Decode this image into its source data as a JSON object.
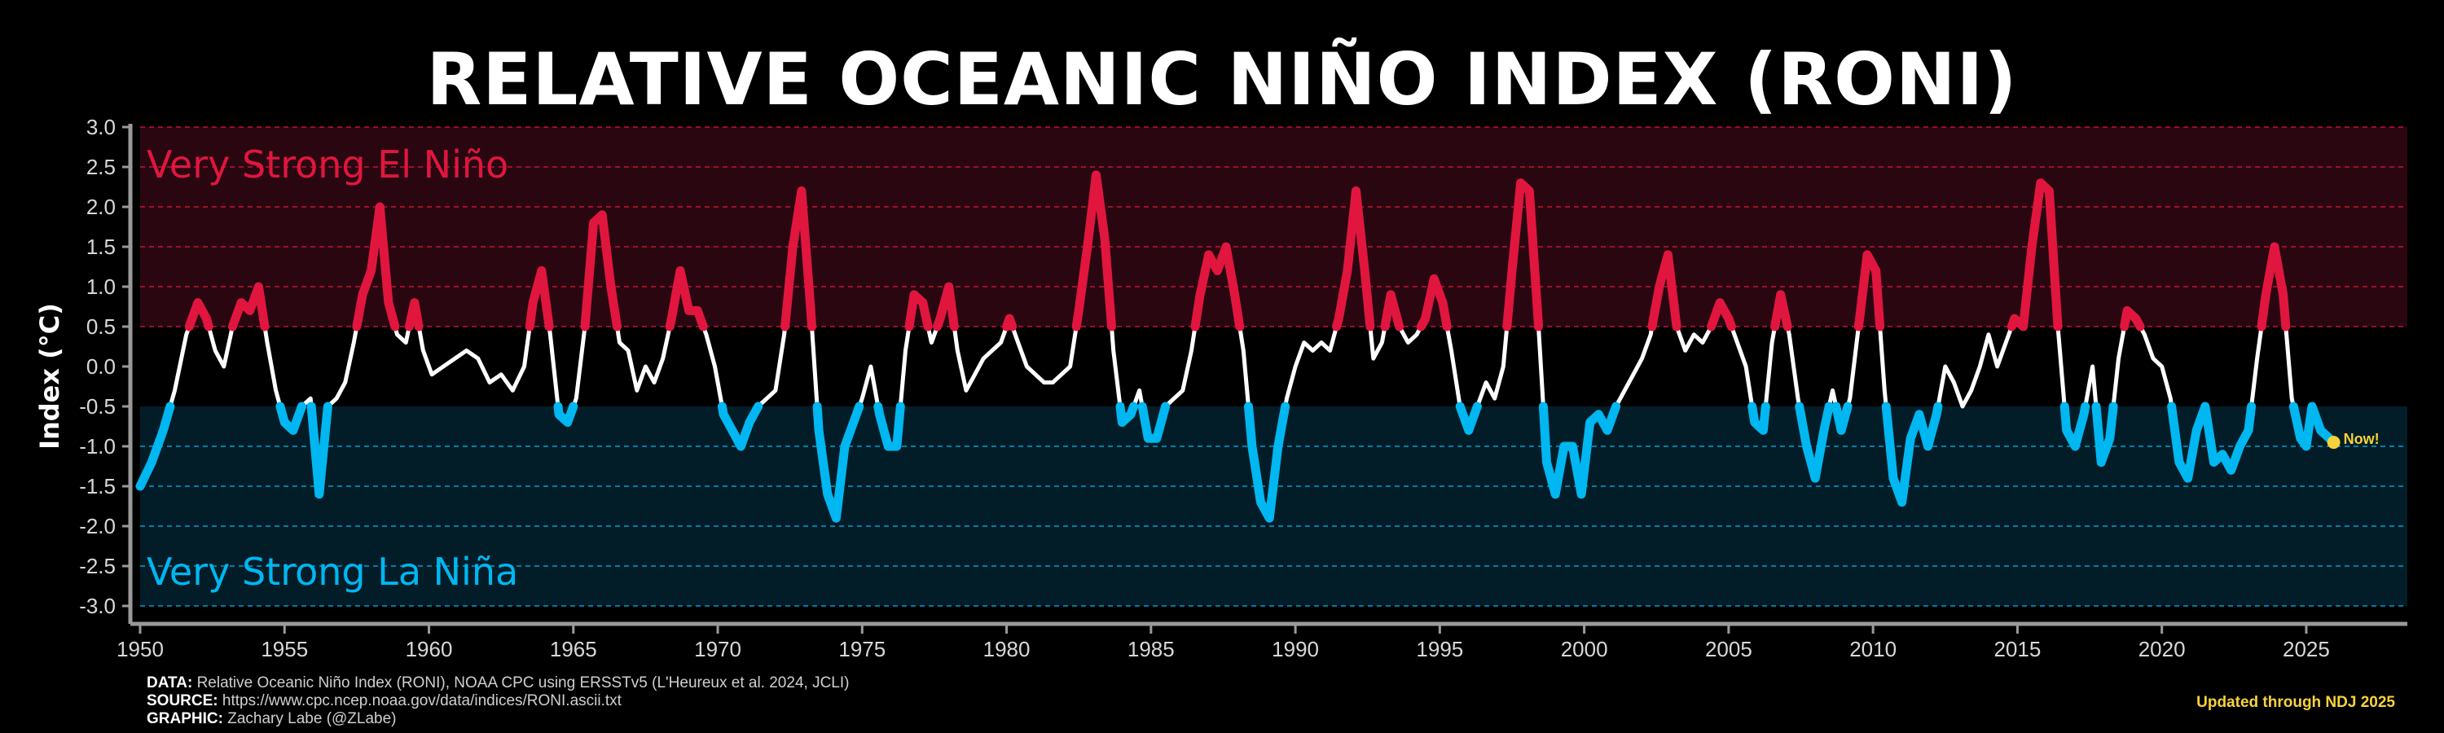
{
  "chart_data": {
    "type": "line",
    "title": "RELATIVE OCEANIC NIÑO INDEX (RONI)",
    "ylabel": "Index (°C)",
    "xlabel": "",
    "xlim": [
      1950,
      2028.5
    ],
    "ylim": [
      -3.0,
      3.0
    ],
    "x_ticks": [
      1950,
      1955,
      1960,
      1965,
      1970,
      1975,
      1980,
      1985,
      1990,
      1995,
      2000,
      2005,
      2010,
      2015,
      2020,
      2025
    ],
    "y_ticks": [
      "3.0",
      "2.5",
      "2.0",
      "1.5",
      "1.0",
      "0.5",
      "0.0",
      "-0.5",
      "-1.0",
      "-1.5",
      "-2.0",
      "-2.5",
      "-3.0"
    ],
    "thresholds": {
      "el_nino": 0.5,
      "la_nina": -0.5
    },
    "zones": [
      {
        "label": "Very Strong El Niño",
        "from": 0.5,
        "to": 3.0,
        "color": "#2a0710"
      },
      {
        "label": "Very Strong La Niña",
        "from": -3.0,
        "to": -0.5,
        "color": "#031d28"
      }
    ],
    "reference_lines": [
      2.0,
      1.5,
      1.0,
      0.5,
      -1.0,
      -1.5,
      -2.0,
      -3.0
    ],
    "colors": {
      "el_nino": "#e0163f",
      "la_nina": "#00b7f1",
      "neutral": "#ffffff",
      "now": "#f7d33b"
    },
    "grid": false,
    "series": [
      {
        "points": [
          [
            1950.0,
            -1.5
          ],
          [
            1950.4,
            -1.2
          ],
          [
            1950.8,
            -0.8
          ],
          [
            1951.2,
            -0.3
          ],
          [
            1951.6,
            0.4
          ],
          [
            1952.0,
            0.8
          ],
          [
            1952.3,
            0.6
          ],
          [
            1952.6,
            0.2
          ],
          [
            1952.9,
            0.0
          ],
          [
            1953.2,
            0.5
          ],
          [
            1953.5,
            0.8
          ],
          [
            1953.8,
            0.7
          ],
          [
            1954.1,
            1.0
          ],
          [
            1954.4,
            0.3
          ],
          [
            1954.7,
            -0.3
          ],
          [
            1955.0,
            -0.7
          ],
          [
            1955.3,
            -0.8
          ],
          [
            1955.6,
            -0.5
          ],
          [
            1955.9,
            -0.4
          ],
          [
            1956.2,
            -1.6
          ],
          [
            1956.5,
            -0.5
          ],
          [
            1956.8,
            -0.4
          ],
          [
            1957.1,
            -0.2
          ],
          [
            1957.4,
            0.3
          ],
          [
            1957.7,
            0.9
          ],
          [
            1958.0,
            1.2
          ],
          [
            1958.3,
            2.0
          ],
          [
            1958.6,
            0.8
          ],
          [
            1958.9,
            0.4
          ],
          [
            1959.2,
            0.3
          ],
          [
            1959.5,
            0.8
          ],
          [
            1959.8,
            0.2
          ],
          [
            1960.1,
            -0.1
          ],
          [
            1960.5,
            0.0
          ],
          [
            1960.9,
            0.1
          ],
          [
            1961.3,
            0.2
          ],
          [
            1961.7,
            0.1
          ],
          [
            1962.1,
            -0.2
          ],
          [
            1962.5,
            -0.1
          ],
          [
            1962.9,
            -0.3
          ],
          [
            1963.3,
            0.0
          ],
          [
            1963.6,
            0.8
          ],
          [
            1963.9,
            1.2
          ],
          [
            1964.2,
            0.4
          ],
          [
            1964.5,
            -0.6
          ],
          [
            1964.8,
            -0.7
          ],
          [
            1965.1,
            -0.4
          ],
          [
            1965.4,
            0.5
          ],
          [
            1965.7,
            1.8
          ],
          [
            1966.0,
            1.9
          ],
          [
            1966.3,
            1.0
          ],
          [
            1966.6,
            0.3
          ],
          [
            1966.9,
            0.2
          ],
          [
            1967.2,
            -0.3
          ],
          [
            1967.5,
            0.0
          ],
          [
            1967.8,
            -0.2
          ],
          [
            1968.1,
            0.1
          ],
          [
            1968.4,
            0.6
          ],
          [
            1968.7,
            1.2
          ],
          [
            1969.0,
            0.7
          ],
          [
            1969.3,
            0.7
          ],
          [
            1969.6,
            0.4
          ],
          [
            1969.9,
            0.0
          ],
          [
            1970.2,
            -0.6
          ],
          [
            1970.5,
            -0.8
          ],
          [
            1970.8,
            -1.0
          ],
          [
            1971.1,
            -0.7
          ],
          [
            1971.4,
            -0.5
          ],
          [
            1971.7,
            -0.4
          ],
          [
            1972.0,
            -0.3
          ],
          [
            1972.3,
            0.4
          ],
          [
            1972.6,
            1.5
          ],
          [
            1972.9,
            2.2
          ],
          [
            1973.2,
            0.8
          ],
          [
            1973.5,
            -0.8
          ],
          [
            1973.8,
            -1.6
          ],
          [
            1974.1,
            -1.9
          ],
          [
            1974.4,
            -1.0
          ],
          [
            1974.7,
            -0.7
          ],
          [
            1975.0,
            -0.4
          ],
          [
            1975.3,
            0.0
          ],
          [
            1975.6,
            -0.6
          ],
          [
            1975.9,
            -1.0
          ],
          [
            1976.2,
            -1.0
          ],
          [
            1976.5,
            0.2
          ],
          [
            1976.8,
            0.9
          ],
          [
            1977.1,
            0.8
          ],
          [
            1977.4,
            0.3
          ],
          [
            1977.7,
            0.6
          ],
          [
            1978.0,
            1.0
          ],
          [
            1978.3,
            0.2
          ],
          [
            1978.6,
            -0.3
          ],
          [
            1978.9,
            -0.1
          ],
          [
            1979.2,
            0.1
          ],
          [
            1979.5,
            0.2
          ],
          [
            1979.8,
            0.3
          ],
          [
            1980.1,
            0.6
          ],
          [
            1980.4,
            0.3
          ],
          [
            1980.7,
            0.0
          ],
          [
            1981.0,
            -0.1
          ],
          [
            1981.3,
            -0.2
          ],
          [
            1981.6,
            -0.2
          ],
          [
            1981.9,
            -0.1
          ],
          [
            1982.2,
            0.0
          ],
          [
            1982.5,
            0.7
          ],
          [
            1982.8,
            1.5
          ],
          [
            1983.1,
            2.4
          ],
          [
            1983.4,
            1.6
          ],
          [
            1983.7,
            0.2
          ],
          [
            1984.0,
            -0.7
          ],
          [
            1984.3,
            -0.6
          ],
          [
            1984.6,
            -0.3
          ],
          [
            1984.9,
            -0.9
          ],
          [
            1985.2,
            -0.9
          ],
          [
            1985.5,
            -0.5
          ],
          [
            1985.8,
            -0.4
          ],
          [
            1986.1,
            -0.3
          ],
          [
            1986.4,
            0.2
          ],
          [
            1986.7,
            0.9
          ],
          [
            1987.0,
            1.4
          ],
          [
            1987.3,
            1.2
          ],
          [
            1987.6,
            1.5
          ],
          [
            1987.9,
            0.9
          ],
          [
            1988.2,
            0.2
          ],
          [
            1988.5,
            -1.0
          ],
          [
            1988.8,
            -1.7
          ],
          [
            1989.1,
            -1.9
          ],
          [
            1989.4,
            -1.0
          ],
          [
            1989.7,
            -0.4
          ],
          [
            1990.0,
            0.0
          ],
          [
            1990.3,
            0.3
          ],
          [
            1990.6,
            0.2
          ],
          [
            1990.9,
            0.3
          ],
          [
            1991.2,
            0.2
          ],
          [
            1991.5,
            0.6
          ],
          [
            1991.8,
            1.2
          ],
          [
            1992.1,
            2.2
          ],
          [
            1992.4,
            1.2
          ],
          [
            1992.7,
            0.1
          ],
          [
            1993.0,
            0.3
          ],
          [
            1993.3,
            0.9
          ],
          [
            1993.6,
            0.5
          ],
          [
            1993.9,
            0.3
          ],
          [
            1994.2,
            0.4
          ],
          [
            1994.5,
            0.6
          ],
          [
            1994.8,
            1.1
          ],
          [
            1995.1,
            0.8
          ],
          [
            1995.4,
            0.2
          ],
          [
            1995.7,
            -0.5
          ],
          [
            1996.0,
            -0.8
          ],
          [
            1996.3,
            -0.5
          ],
          [
            1996.6,
            -0.2
          ],
          [
            1996.9,
            -0.4
          ],
          [
            1997.2,
            0.0
          ],
          [
            1997.5,
            1.2
          ],
          [
            1997.8,
            2.3
          ],
          [
            1998.1,
            2.2
          ],
          [
            1998.4,
            0.6
          ],
          [
            1998.7,
            -1.2
          ],
          [
            1999.0,
            -1.6
          ],
          [
            1999.3,
            -1.0
          ],
          [
            1999.6,
            -1.0
          ],
          [
            1999.9,
            -1.6
          ],
          [
            2000.2,
            -0.7
          ],
          [
            2000.5,
            -0.6
          ],
          [
            2000.8,
            -0.8
          ],
          [
            2001.1,
            -0.5
          ],
          [
            2001.4,
            -0.3
          ],
          [
            2001.7,
            -0.1
          ],
          [
            2002.0,
            0.1
          ],
          [
            2002.3,
            0.4
          ],
          [
            2002.6,
            1.0
          ],
          [
            2002.9,
            1.4
          ],
          [
            2003.2,
            0.5
          ],
          [
            2003.5,
            0.2
          ],
          [
            2003.8,
            0.4
          ],
          [
            2004.1,
            0.3
          ],
          [
            2004.4,
            0.5
          ],
          [
            2004.7,
            0.8
          ],
          [
            2005.0,
            0.6
          ],
          [
            2005.3,
            0.3
          ],
          [
            2005.6,
            0.0
          ],
          [
            2005.9,
            -0.7
          ],
          [
            2006.2,
            -0.8
          ],
          [
            2006.5,
            0.3
          ],
          [
            2006.8,
            0.9
          ],
          [
            2007.1,
            0.4
          ],
          [
            2007.4,
            -0.4
          ],
          [
            2007.7,
            -1.0
          ],
          [
            2008.0,
            -1.4
          ],
          [
            2008.3,
            -0.8
          ],
          [
            2008.6,
            -0.3
          ],
          [
            2008.9,
            -0.8
          ],
          [
            2009.2,
            -0.4
          ],
          [
            2009.5,
            0.5
          ],
          [
            2009.8,
            1.4
          ],
          [
            2010.1,
            1.2
          ],
          [
            2010.4,
            -0.3
          ],
          [
            2010.7,
            -1.4
          ],
          [
            2011.0,
            -1.7
          ],
          [
            2011.3,
            -0.9
          ],
          [
            2011.6,
            -0.6
          ],
          [
            2011.9,
            -1.0
          ],
          [
            2012.2,
            -0.6
          ],
          [
            2012.5,
            0.0
          ],
          [
            2012.8,
            -0.2
          ],
          [
            2013.1,
            -0.5
          ],
          [
            2013.4,
            -0.3
          ],
          [
            2013.7,
            0.0
          ],
          [
            2014.0,
            0.4
          ],
          [
            2014.3,
            0.0
          ],
          [
            2014.6,
            0.3
          ],
          [
            2014.9,
            0.6
          ],
          [
            2015.2,
            0.5
          ],
          [
            2015.5,
            1.5
          ],
          [
            2015.8,
            2.3
          ],
          [
            2016.1,
            2.2
          ],
          [
            2016.4,
            0.5
          ],
          [
            2016.7,
            -0.8
          ],
          [
            2017.0,
            -1.0
          ],
          [
            2017.3,
            -0.6
          ],
          [
            2017.6,
            0.0
          ],
          [
            2017.9,
            -1.2
          ],
          [
            2018.2,
            -0.9
          ],
          [
            2018.5,
            0.1
          ],
          [
            2018.8,
            0.7
          ],
          [
            2019.1,
            0.6
          ],
          [
            2019.4,
            0.4
          ],
          [
            2019.7,
            0.1
          ],
          [
            2020.0,
            0.0
          ],
          [
            2020.3,
            -0.4
          ],
          [
            2020.6,
            -1.2
          ],
          [
            2020.9,
            -1.4
          ],
          [
            2021.2,
            -0.8
          ],
          [
            2021.5,
            -0.5
          ],
          [
            2021.8,
            -1.2
          ],
          [
            2022.1,
            -1.1
          ],
          [
            2022.4,
            -1.3
          ],
          [
            2022.7,
            -1.0
          ],
          [
            2023.0,
            -0.8
          ],
          [
            2023.3,
            0.1
          ],
          [
            2023.6,
            0.9
          ],
          [
            2023.9,
            1.5
          ],
          [
            2024.2,
            0.9
          ],
          [
            2024.5,
            -0.4
          ],
          [
            2024.8,
            -0.9
          ],
          [
            2025.0,
            -1.0
          ],
          [
            2025.2,
            -0.5
          ],
          [
            2025.5,
            -0.8
          ],
          [
            2025.8,
            -0.9
          ],
          [
            2025.95,
            -0.95
          ]
        ]
      }
    ],
    "zone_labels": {
      "el_nino": "Very Strong El Niño",
      "la_nina": "Very Strong La Niña"
    },
    "now_label": "Now!",
    "now_point": [
      2025.95,
      -0.95
    ]
  },
  "footer": {
    "data_label": "DATA:",
    "data_text": "Relative Oceanic Niño Index (RONI), NOAA CPC using ERSSTv5 (L'Heureux et al. 2024, JCLI)",
    "source_label": "SOURCE:",
    "source_text": "https://www.cpc.ncep.noaa.gov/data/indices/RONI.ascii.txt",
    "graphic_label": "GRAPHIC:",
    "graphic_text": "Zachary Labe (@ZLabe)",
    "updated": "Updated through NDJ 2025"
  }
}
